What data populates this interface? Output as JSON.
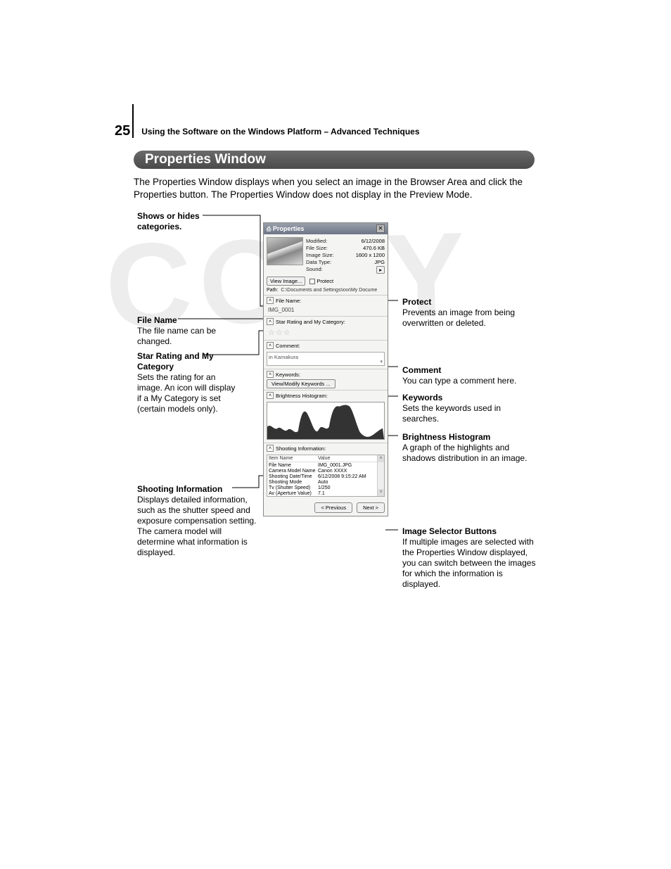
{
  "page_number": "25",
  "header_sub": "Using the Software on the Windows Platform – Advanced Techniques",
  "section_title": "Properties Window",
  "intro": "The Properties Window displays when you select an image in the Browser Area and click the Properties button. The Properties Window does not display in the Preview Mode.",
  "watermark": "COPY",
  "callouts": {
    "shows_hides": {
      "title": "Shows or hides categories."
    },
    "file_name": {
      "title": "File Name",
      "desc": "The file name can be changed."
    },
    "star_rating": {
      "title": "Star Rating and My Category",
      "desc": "Sets the rating for an image. An icon will display if a My Category is set (certain models only)."
    },
    "shooting_info": {
      "title": "Shooting Information",
      "desc": "Displays detailed information, such as the shutter speed and exposure compensation setting. The camera model will determine what information is displayed."
    },
    "protect": {
      "title": "Protect",
      "desc": "Prevents an image from being overwritten or deleted."
    },
    "comment": {
      "title": "Comment",
      "desc": "You can type a comment here."
    },
    "keywords": {
      "title": "Keywords",
      "desc": "Sets the keywords used in searches."
    },
    "histogram": {
      "title": "Brightness Histogram",
      "desc": "A graph of the highlights and shadows distribution in an image."
    },
    "image_selector": {
      "title": "Image Selector Buttons",
      "desc": "If multiple images are selected with the Properties Window displayed, you can switch between the images for which the information is displayed."
    }
  },
  "dialog": {
    "title": "Properties",
    "meta": {
      "modified_label": "Modified:",
      "modified": "6/12/2008",
      "filesize_label": "File Size:",
      "filesize": "470.6 KB",
      "imagesize_label": "Image Size:",
      "imagesize": "1600 x 1200",
      "datatype_label": "Data Type:",
      "datatype": "JPG",
      "sound_label": "Sound:"
    },
    "view_image_btn": "View Image...",
    "protect_chk": "Protect",
    "path_label": "Path:",
    "path_value": "C:\\Documents and Settings\\xxx\\My Docume",
    "filename_hdr": "File Name:",
    "filename_val": "IMG_0001",
    "star_hdr": "Star Rating and My Category:",
    "stars": "☆☆☆",
    "comment_hdr": "Comment:",
    "comment_val": "in Kamakura",
    "keywords_hdr": "Keywords:",
    "keywords_btn": "View/Modify Keywords ...",
    "histo_hdr": "Brightness Histogram:",
    "shoot_hdr": "Shooting Information:",
    "shoot_cols": {
      "c1": "Item Name",
      "c2": "Value"
    },
    "shoot_rows": [
      {
        "k": "File Name",
        "v": "IMG_0001.JPG"
      },
      {
        "k": "Camera Model Name",
        "v": "Canon XXXX"
      },
      {
        "k": "Shooting Date/Time",
        "v": "6/12/2008 9:15:22 AM"
      },
      {
        "k": "Shooting Mode",
        "v": "Auto"
      },
      {
        "k": "Tv (Shutter Speed)",
        "v": "1/250"
      },
      {
        "k": "Av (Aperture Value)",
        "v": "7.1"
      }
    ],
    "prev_btn": "< Previous",
    "next_btn": "Next >"
  }
}
